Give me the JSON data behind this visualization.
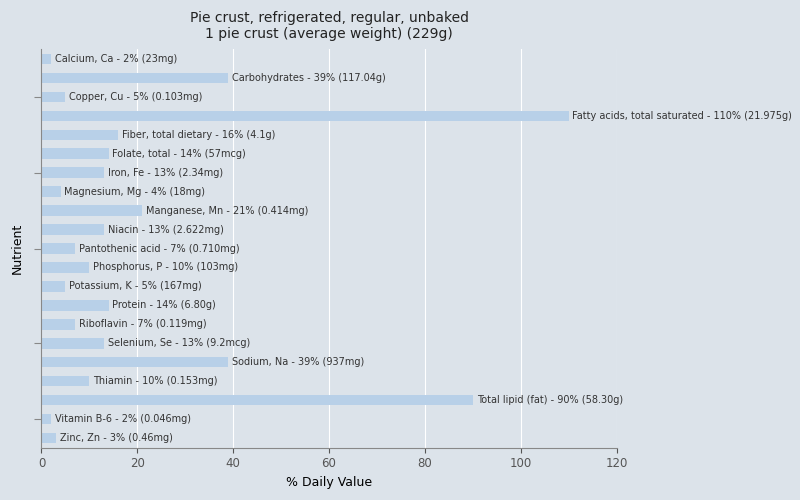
{
  "title": "Pie crust, refrigerated, regular, unbaked\n1 pie crust (average weight) (229g)",
  "xlabel": "% Daily Value",
  "ylabel": "Nutrient",
  "xlim": [
    0,
    120
  ],
  "xticks": [
    0,
    20,
    40,
    60,
    80,
    100,
    120
  ],
  "background_color": "#dce3ea",
  "plot_bg_color": "#dce3ea",
  "bar_color": "#b8d0e8",
  "bar_height": 0.55,
  "title_fontsize": 10,
  "label_fontsize": 7,
  "nutrients": [
    {
      "label": "Calcium, Ca - 2% (23mg)",
      "value": 2
    },
    {
      "label": "Carbohydrates - 39% (117.04g)",
      "value": 39
    },
    {
      "label": "Copper, Cu - 5% (0.103mg)",
      "value": 5
    },
    {
      "label": "Fatty acids, total saturated - 110% (21.975g)",
      "value": 110
    },
    {
      "label": "Fiber, total dietary - 16% (4.1g)",
      "value": 16
    },
    {
      "label": "Folate, total - 14% (57mcg)",
      "value": 14
    },
    {
      "label": "Iron, Fe - 13% (2.34mg)",
      "value": 13
    },
    {
      "label": "Magnesium, Mg - 4% (18mg)",
      "value": 4
    },
    {
      "label": "Manganese, Mn - 21% (0.414mg)",
      "value": 21
    },
    {
      "label": "Niacin - 13% (2.622mg)",
      "value": 13
    },
    {
      "label": "Pantothenic acid - 7% (0.710mg)",
      "value": 7
    },
    {
      "label": "Phosphorus, P - 10% (103mg)",
      "value": 10
    },
    {
      "label": "Potassium, K - 5% (167mg)",
      "value": 5
    },
    {
      "label": "Protein - 14% (6.80g)",
      "value": 14
    },
    {
      "label": "Riboflavin - 7% (0.119mg)",
      "value": 7
    },
    {
      "label": "Selenium, Se - 13% (9.2mcg)",
      "value": 13
    },
    {
      "label": "Sodium, Na - 39% (937mg)",
      "value": 39
    },
    {
      "label": "Thiamin - 10% (0.153mg)",
      "value": 10
    },
    {
      "label": "Total lipid (fat) - 90% (58.30g)",
      "value": 90
    },
    {
      "label": "Vitamin B-6 - 2% (0.046mg)",
      "value": 2
    },
    {
      "label": "Zinc, Zn - 3% (0.46mg)",
      "value": 3
    }
  ],
  "ytick_positions": [
    18,
    14,
    10,
    5,
    1
  ]
}
